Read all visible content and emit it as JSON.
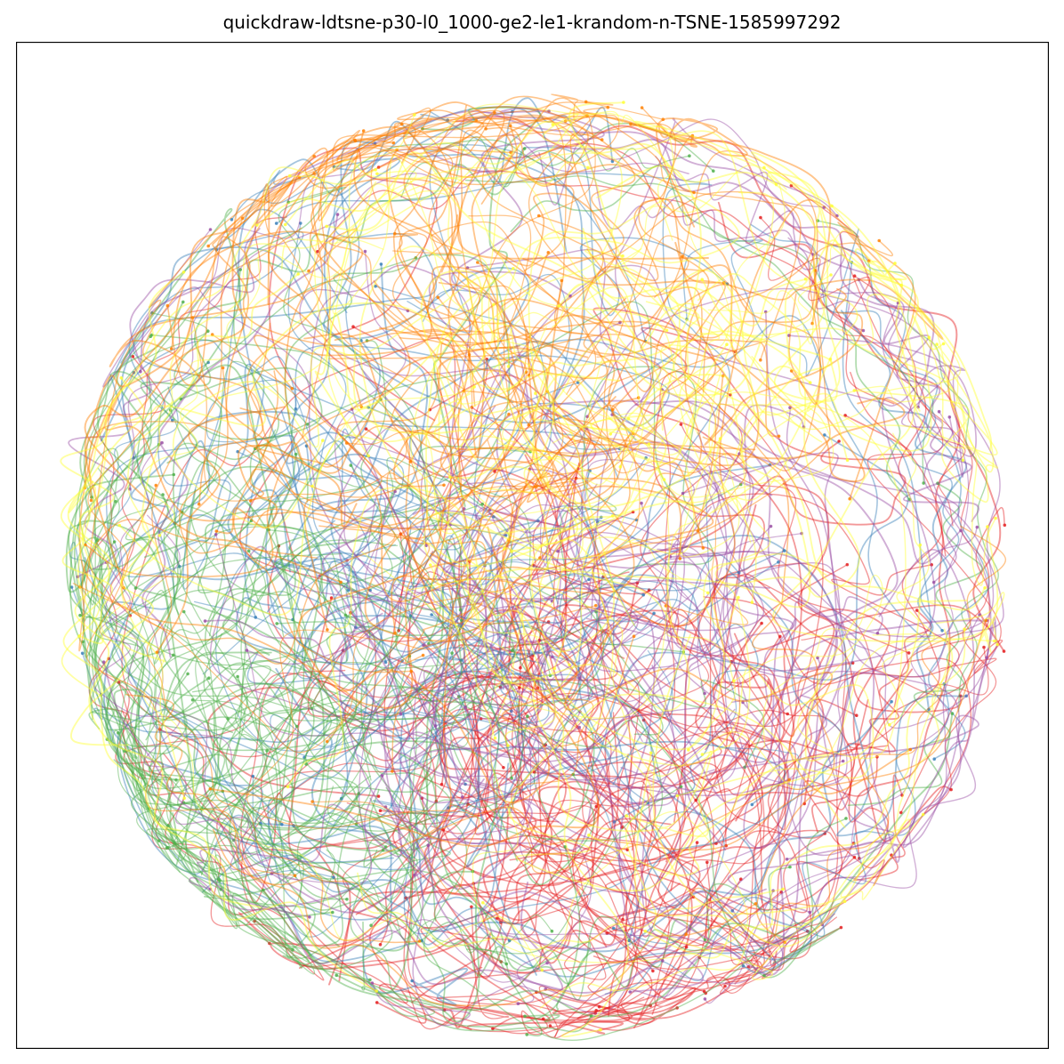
{
  "chart_data": {
    "type": "line",
    "title": "quickdraw-ldtsne-p30-l0_1000-ge2-le1-krandom-n-TSNE-1585997292",
    "xlabel": "",
    "ylabel": "",
    "axes_ticks_visible": false,
    "grid": false,
    "legend": "none",
    "line_alpha": 0.45,
    "palette": [
      "#e41a1c",
      "#377eb8",
      "#4daf4a",
      "#984ea3",
      "#ff7f00",
      "#ffff33"
    ],
    "series": [
      {
        "color": "#e41a1c",
        "count": 120,
        "region": {
          "cx": 0.58,
          "cy": 0.72,
          "spread": 0.3
        }
      },
      {
        "color": "#377eb8",
        "count": 85,
        "region": {
          "cx": 0.45,
          "cy": 0.52,
          "spread": 0.3
        }
      },
      {
        "color": "#4daf4a",
        "count": 110,
        "region": {
          "cx": 0.28,
          "cy": 0.68,
          "spread": 0.24
        }
      },
      {
        "color": "#984ea3",
        "count": 90,
        "region": {
          "cx": 0.55,
          "cy": 0.58,
          "spread": 0.22
        }
      },
      {
        "color": "#ff7f00",
        "count": 100,
        "region": {
          "cx": 0.45,
          "cy": 0.3,
          "spread": 0.24
        }
      },
      {
        "color": "#ffff33",
        "count": 90,
        "region": {
          "cx": 0.62,
          "cy": 0.4,
          "spread": 0.28
        }
      }
    ]
  }
}
